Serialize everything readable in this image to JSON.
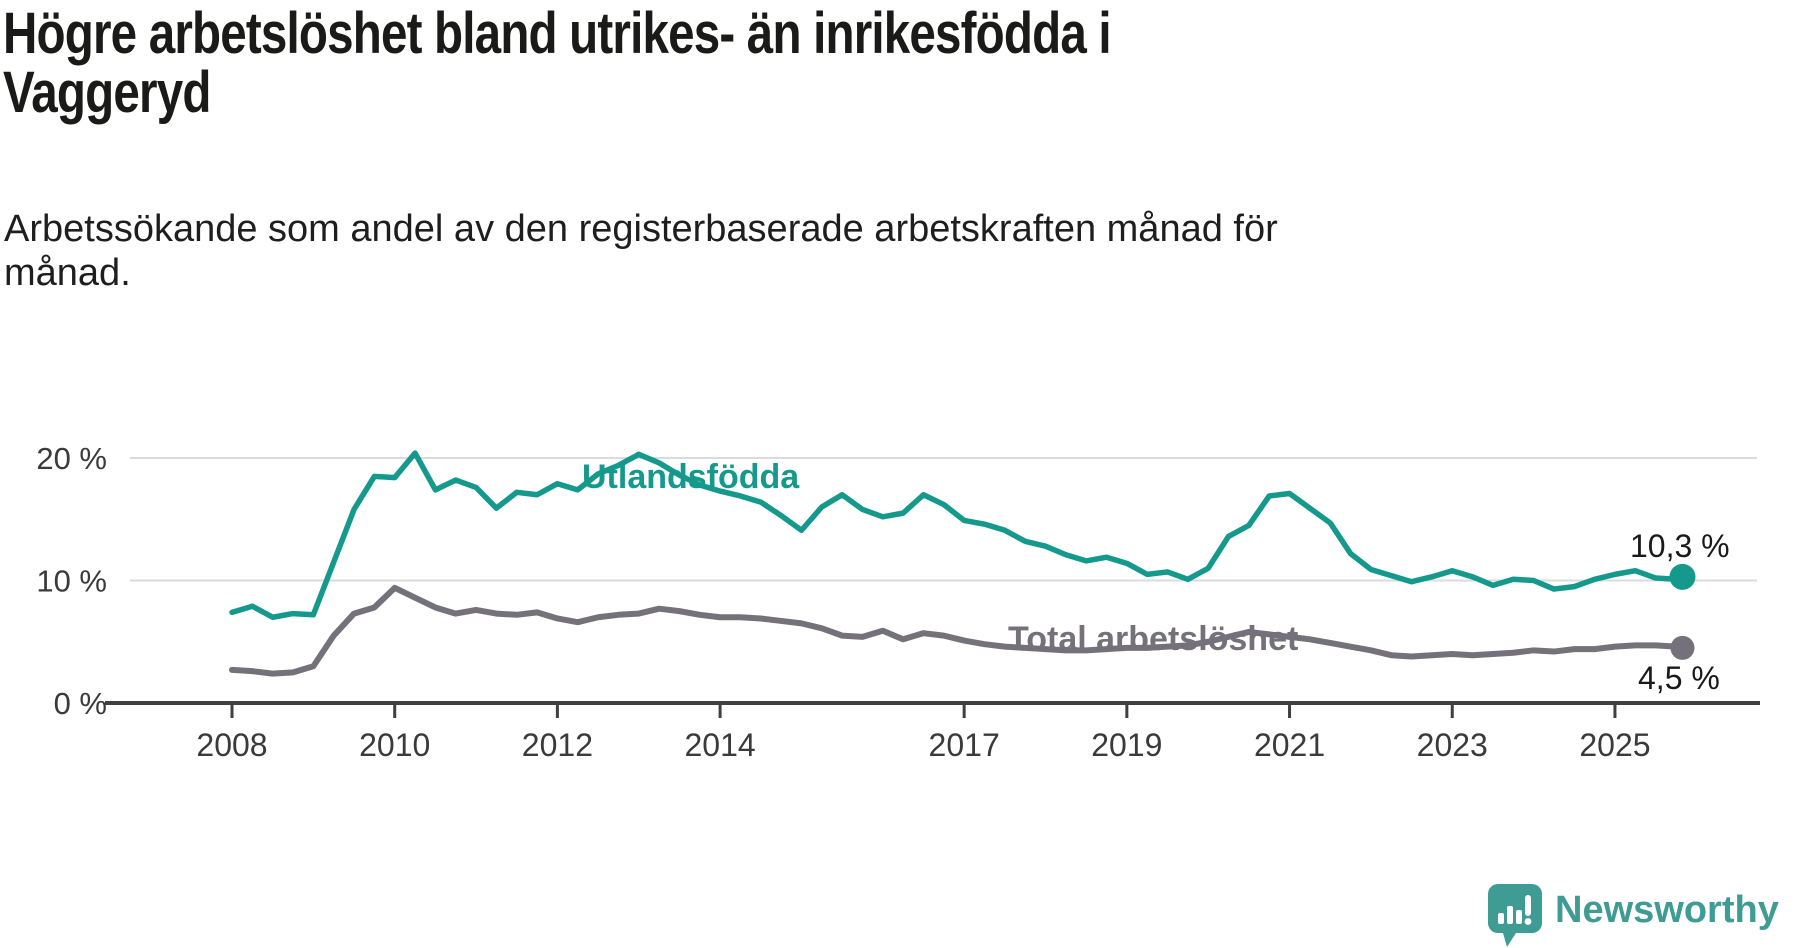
{
  "title_lines": [
    "Högre arbetslöshet bland utrikes- än inrikesfödda i",
    "Vaggeryd"
  ],
  "subtitle_lines": [
    "Arbetssökande som andel av den registerbaserade arbetskraften månad för",
    "månad."
  ],
  "branding": {
    "name": "Newsworthy",
    "icon": "newsworthy-speech-bubble-chart-icon",
    "color": "#3e9c94"
  },
  "chart_data": {
    "type": "line",
    "title": "Högre arbetslöshet bland utrikes- än inrikesfödda i Vaggeryd",
    "subtitle": "Arbetssökande som andel av den registerbaserade arbetskraften månad för månad.",
    "unit": "%",
    "grid": "horizontal",
    "legend_position": "inline-labels",
    "xlim": [
      2008,
      2025.83
    ],
    "ylim": [
      0,
      26
    ],
    "x_ticks": [
      {
        "value": 2008,
        "label": "2008"
      },
      {
        "value": 2010,
        "label": "2010"
      },
      {
        "value": 2012,
        "label": "2012"
      },
      {
        "value": 2014,
        "label": "2014"
      },
      {
        "value": 2017,
        "label": "2017"
      },
      {
        "value": 2019,
        "label": "2019"
      },
      {
        "value": 2021,
        "label": "2021"
      },
      {
        "value": 2023,
        "label": "2023"
      },
      {
        "value": 2025,
        "label": "2025"
      }
    ],
    "y_ticks": [
      {
        "value": 0,
        "label": "0 %"
      },
      {
        "value": 10,
        "label": "10 %"
      },
      {
        "value": 20,
        "label": "20 %"
      }
    ],
    "x": [
      2008,
      2008.25,
      2008.5,
      2008.75,
      2009,
      2009.25,
      2009.5,
      2009.75,
      2010,
      2010.25,
      2010.5,
      2010.75,
      2011,
      2011.25,
      2011.5,
      2011.75,
      2012,
      2012.25,
      2012.5,
      2012.75,
      2013,
      2013.25,
      2013.5,
      2013.75,
      2014,
      2014.25,
      2014.5,
      2014.75,
      2015,
      2015.25,
      2015.5,
      2015.75,
      2016,
      2016.25,
      2016.5,
      2016.75,
      2017,
      2017.25,
      2017.5,
      2017.75,
      2018,
      2018.25,
      2018.5,
      2018.75,
      2019,
      2019.25,
      2019.5,
      2019.75,
      2020,
      2020.25,
      2020.5,
      2020.75,
      2021,
      2021.25,
      2021.5,
      2021.75,
      2022,
      2022.25,
      2022.5,
      2022.75,
      2023,
      2023.25,
      2023.5,
      2023.75,
      2024,
      2024.25,
      2024.5,
      2024.75,
      2025,
      2025.25,
      2025.5,
      2025.75,
      2025.83
    ],
    "series": [
      {
        "name": "Utlandsfödda",
        "color": "#14998c",
        "end_label": "10,3 %",
        "end_value": 10.3,
        "values": [
          7.4,
          7.9,
          7.0,
          7.3,
          7.2,
          11.5,
          15.8,
          18.5,
          18.4,
          20.4,
          17.4,
          18.2,
          17.6,
          15.9,
          17.2,
          17.0,
          17.9,
          17.4,
          18.7,
          19.4,
          20.3,
          19.6,
          18.6,
          17.8,
          17.3,
          16.9,
          16.4,
          15.3,
          14.1,
          16.0,
          17.0,
          15.8,
          15.2,
          15.5,
          17.0,
          16.2,
          14.9,
          14.6,
          14.1,
          13.2,
          12.8,
          12.1,
          11.6,
          11.9,
          11.4,
          10.5,
          10.7,
          10.1,
          11.0,
          13.6,
          14.5,
          16.9,
          17.1,
          15.9,
          14.7,
          12.2,
          10.9,
          10.4,
          9.9,
          10.3,
          10.8,
          10.3,
          9.6,
          10.1,
          10.0,
          9.3,
          9.5,
          10.1,
          10.5,
          10.8,
          10.2,
          10.1,
          10.3
        ]
      },
      {
        "name": "Total arbetslöshet",
        "color": "#75717b",
        "end_label": "4,5 %",
        "end_value": 4.5,
        "values": [
          2.7,
          2.6,
          2.4,
          2.5,
          3.0,
          5.5,
          7.3,
          7.8,
          9.4,
          8.6,
          7.8,
          7.3,
          7.6,
          7.3,
          7.2,
          7.4,
          6.9,
          6.6,
          7.0,
          7.2,
          7.3,
          7.7,
          7.5,
          7.2,
          7.0,
          7.0,
          6.9,
          6.7,
          6.5,
          6.1,
          5.5,
          5.4,
          5.9,
          5.2,
          5.7,
          5.5,
          5.1,
          4.8,
          4.6,
          4.5,
          4.4,
          4.3,
          4.3,
          4.4,
          4.5,
          4.5,
          4.6,
          4.7,
          5.0,
          5.4,
          5.8,
          5.6,
          5.4,
          5.2,
          4.9,
          4.6,
          4.3,
          3.9,
          3.8,
          3.9,
          4.0,
          3.9,
          4.0,
          4.1,
          4.3,
          4.2,
          4.4,
          4.4,
          4.6,
          4.7,
          4.7,
          4.6,
          4.5
        ]
      }
    ]
  }
}
